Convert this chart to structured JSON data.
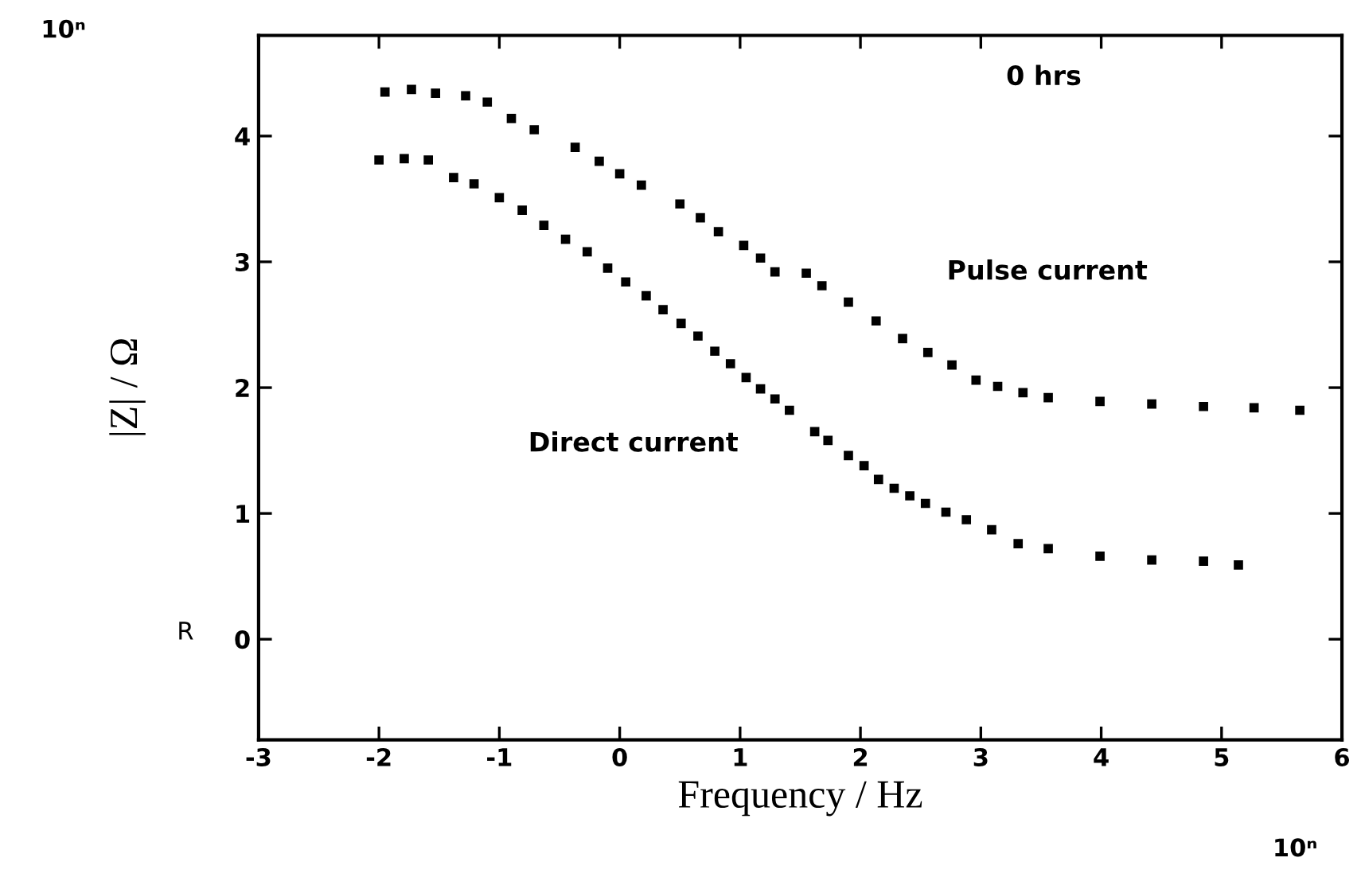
{
  "chart_data": {
    "type": "scatter",
    "xlabel": "Frequency / Hz",
    "ylabel": "|Z| / Ω",
    "xlim": [
      -3,
      6
    ],
    "xticks": [
      -3,
      -2,
      -1,
      0,
      1,
      2,
      3,
      4,
      5,
      6
    ],
    "ylim": [
      -0.8,
      4.8
    ],
    "yticks": [
      0,
      1,
      2,
      3,
      4
    ],
    "marker": "square",
    "grid": false,
    "legend": false,
    "annotations": [
      "0 hrs",
      "10ⁿ",
      "10ⁿ",
      "R"
    ],
    "series": [
      {
        "name": "Pulse current",
        "color": "#000000",
        "x": [
          -1.95,
          -1.73,
          -1.53,
          -1.28,
          -1.1,
          -0.9,
          -0.71,
          -0.37,
          -0.17,
          0.0,
          0.18,
          0.5,
          0.67,
          0.82,
          1.03,
          1.17,
          1.29,
          1.55,
          1.68,
          1.9,
          2.13,
          2.35,
          2.56,
          2.76,
          2.96,
          3.14,
          3.35,
          3.56,
          3.99,
          4.42,
          4.85,
          5.27,
          5.65
        ],
        "values": [
          4.35,
          4.37,
          4.34,
          4.32,
          4.27,
          4.14,
          4.05,
          3.91,
          3.8,
          3.7,
          3.61,
          3.46,
          3.35,
          3.24,
          3.13,
          3.03,
          2.92,
          2.91,
          2.81,
          2.68,
          2.53,
          2.39,
          2.28,
          2.18,
          2.06,
          2.01,
          1.96,
          1.92,
          1.89,
          1.87,
          1.85,
          1.84,
          1.82
        ]
      },
      {
        "name": "Direct current",
        "color": "#000000",
        "x": [
          -2.0,
          -1.79,
          -1.59,
          -1.38,
          -1.21,
          -1.0,
          -0.81,
          -0.63,
          -0.45,
          -0.27,
          -0.1,
          0.05,
          0.22,
          0.36,
          0.51,
          0.65,
          0.79,
          0.92,
          1.05,
          1.17,
          1.29,
          1.41,
          1.62,
          1.73,
          1.9,
          2.03,
          2.15,
          2.28,
          2.41,
          2.54,
          2.71,
          2.88,
          3.09,
          3.31,
          3.56,
          3.99,
          4.42,
          4.85,
          5.14
        ],
        "values": [
          3.81,
          3.82,
          3.81,
          3.67,
          3.62,
          3.51,
          3.41,
          3.29,
          3.18,
          3.08,
          2.95,
          2.84,
          2.73,
          2.62,
          2.51,
          2.41,
          2.29,
          2.19,
          2.08,
          1.99,
          1.91,
          1.82,
          1.65,
          1.58,
          1.46,
          1.38,
          1.27,
          1.2,
          1.14,
          1.08,
          1.01,
          0.95,
          0.87,
          0.76,
          0.72,
          0.66,
          0.63,
          0.62,
          0.59
        ]
      }
    ]
  }
}
